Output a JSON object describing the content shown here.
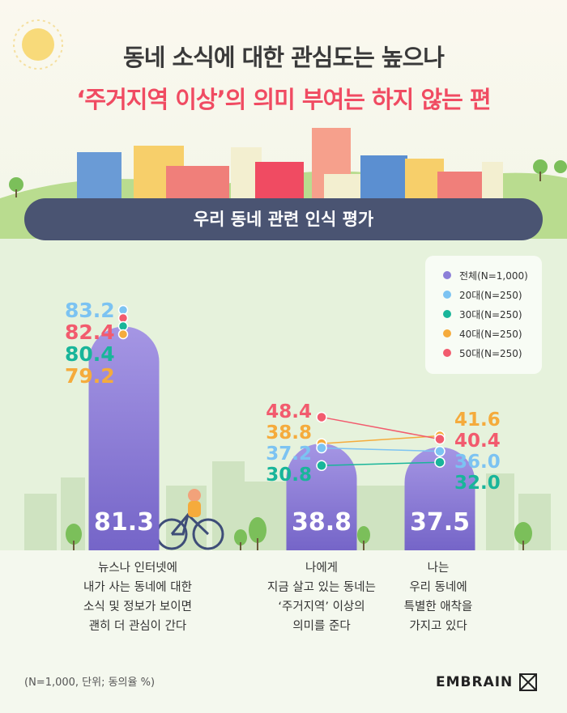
{
  "header": {
    "title_line1": "동네 소식에 대한 관심도는 높으나",
    "title_line2": "‘주거지역 이상’의 의미 부여는 하지 않는 편"
  },
  "banner": {
    "label": "우리 동네 관련 인식 평가"
  },
  "footnote": "(N=1,000, 단위; 동의율 %)",
  "brand": {
    "name": "EMBRAIN"
  },
  "colors": {
    "total": "#8c7fd8",
    "age20": "#7cc3f2",
    "age30": "#19b59a",
    "age40": "#f5ab3c",
    "age50": "#f25b6e",
    "bar_top": "#a596e4",
    "bar_bottom": "#7565c8"
  },
  "chart_data": {
    "type": "bar",
    "categories": [
      "뉴스나 인터넷에\n내가 사는 동네에 대한\n소식 및 정보가 보이면\n괜히 더 관심이 간다",
      "나에게\n지금 살고 있는 동네는\n‘주거지역’ 이상의\n의미를 준다",
      "나는\n우리 동네에\n특별한 애착을\n가지고 있다"
    ],
    "series": [
      {
        "name": "전체(N=1,000)",
        "key": "total",
        "values": [
          81.3,
          38.8,
          37.5
        ]
      },
      {
        "name": "20대(N=250)",
        "key": "age20",
        "values": [
          83.2,
          37.2,
          36.0
        ]
      },
      {
        "name": "30대(N=250)",
        "key": "age30",
        "values": [
          80.4,
          30.8,
          32.0
        ]
      },
      {
        "name": "40대(N=250)",
        "key": "age40",
        "values": [
          79.2,
          38.8,
          41.6
        ]
      },
      {
        "name": "50대(N=250)",
        "key": "age50",
        "values": [
          82.4,
          48.4,
          40.4
        ]
      }
    ],
    "legend_position": "top-right",
    "grid": false
  }
}
